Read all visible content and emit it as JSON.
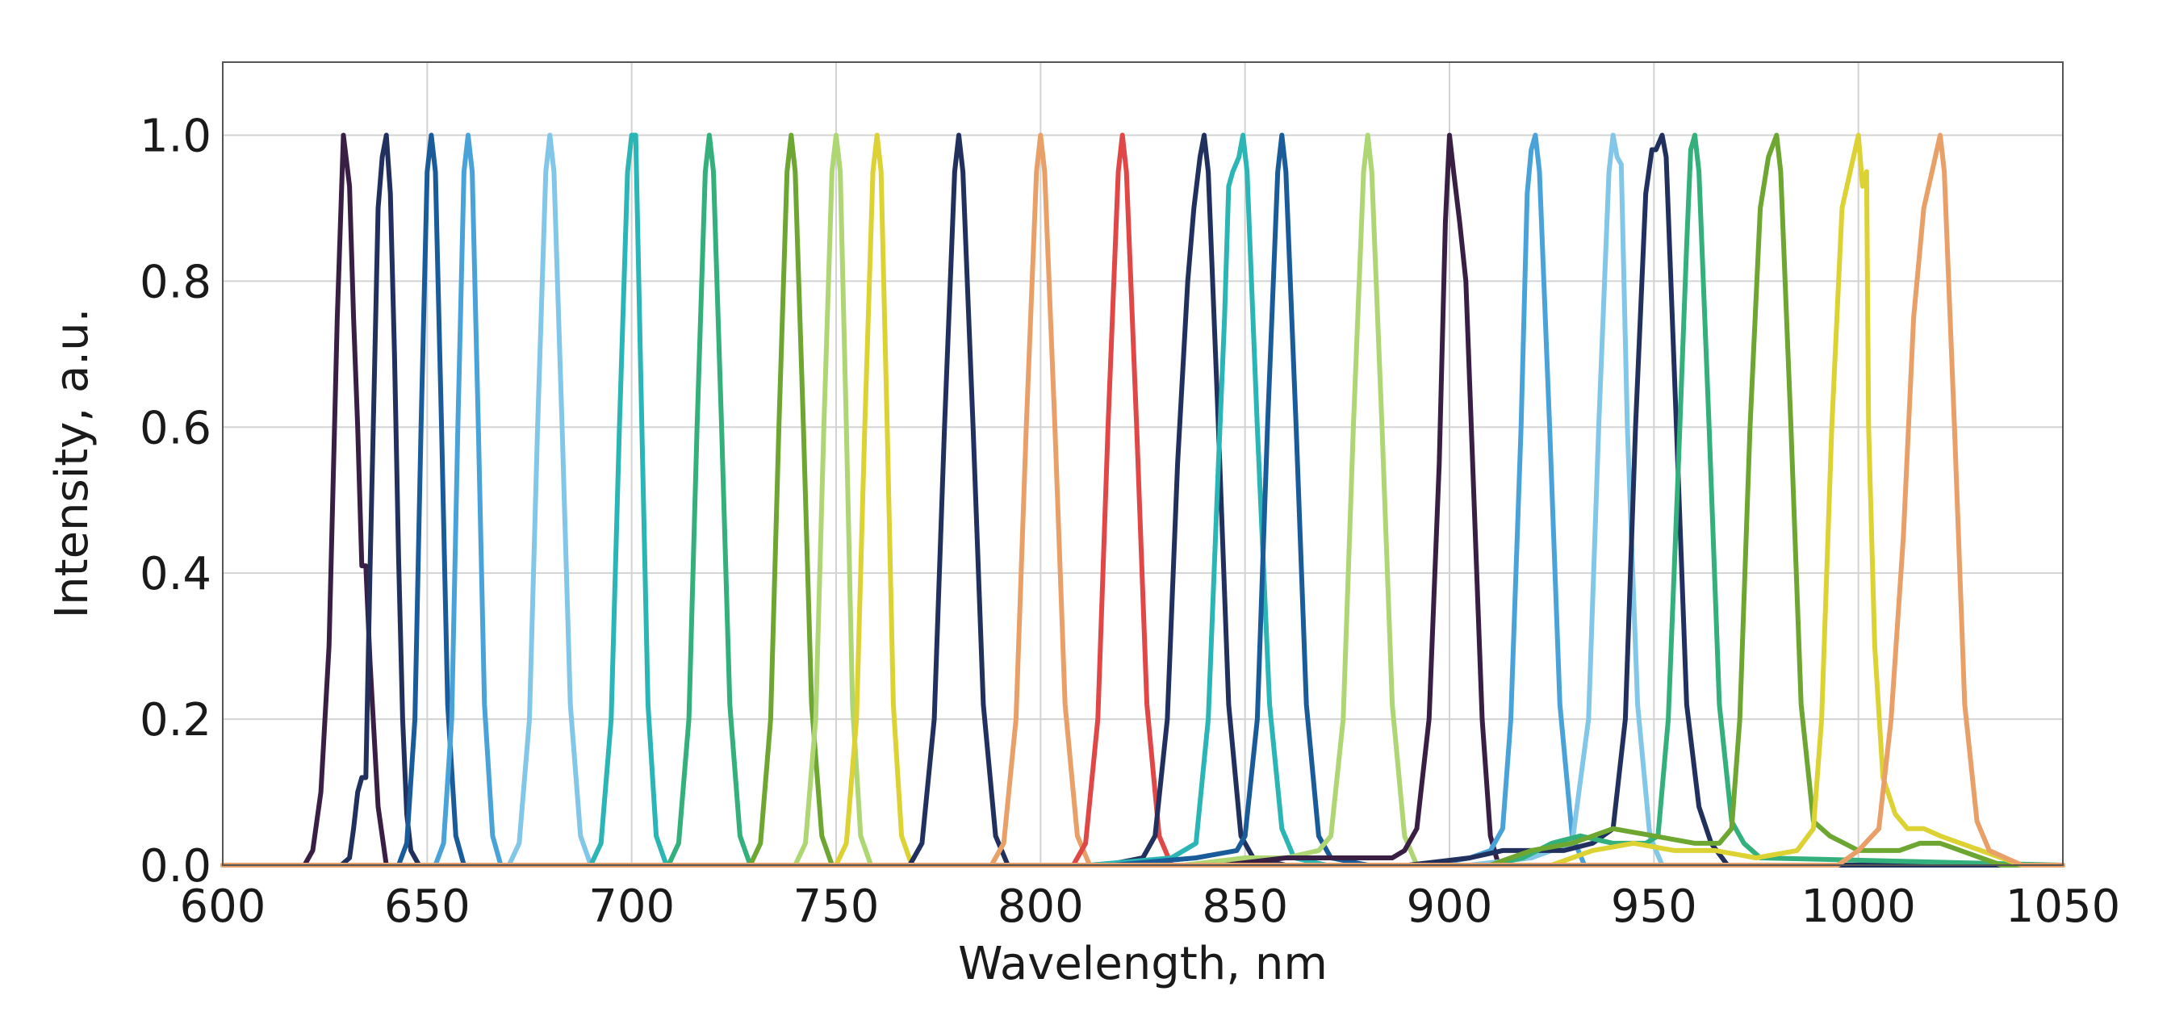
{
  "chart_data": {
    "type": "line",
    "title": "",
    "xlabel": "Wavelength, nm",
    "ylabel": "Intensity, a.u.",
    "xlim": [
      600,
      1050
    ],
    "ylim": [
      0,
      1.1
    ],
    "xticks": [
      600,
      650,
      700,
      750,
      800,
      850,
      900,
      950,
      1000,
      1050
    ],
    "xtick_labels": [
      "600",
      "650",
      "700",
      "750",
      "800",
      "850",
      "900",
      "950",
      "1000",
      "1050"
    ],
    "yticks": [
      0,
      0.2,
      0.4,
      0.6,
      0.8,
      1.0
    ],
    "ytick_labels": [
      "0.0",
      "0.2",
      "0.4",
      "0.6",
      "0.8",
      "1.0"
    ],
    "grid": true,
    "legend": "none",
    "series": [
      {
        "color": "#3a1f45",
        "x": [
          600,
          620,
          622,
          624,
          626,
          628,
          629.5,
          631,
          632,
          633,
          634,
          635,
          636,
          638,
          640,
          650,
          1050
        ],
        "y": [
          0,
          0,
          0.02,
          0.1,
          0.3,
          0.75,
          1.0,
          0.93,
          0.75,
          0.6,
          0.41,
          0.41,
          0.28,
          0.08,
          0,
          0,
          0
        ]
      },
      {
        "color": "#22305e",
        "x": [
          600,
          629,
          631,
          632,
          633,
          634,
          635,
          636,
          637,
          638,
          639,
          640,
          641,
          642,
          643,
          644,
          645,
          646,
          648,
          650,
          1050
        ],
        "y": [
          0,
          0,
          0.01,
          0.05,
          0.1,
          0.12,
          0.12,
          0.4,
          0.65,
          0.9,
          0.97,
          1.0,
          0.92,
          0.7,
          0.42,
          0.2,
          0.07,
          0.02,
          0,
          0,
          0
        ]
      },
      {
        "color": "#1a5c9a",
        "x": [
          600,
          643,
          645,
          647,
          648.5,
          650,
          651,
          652,
          653.5,
          655,
          657,
          659,
          1050
        ],
        "y": [
          0,
          0,
          0.03,
          0.2,
          0.6,
          0.95,
          1.0,
          0.95,
          0.6,
          0.22,
          0.04,
          0,
          0
        ]
      },
      {
        "color": "#4aa3d8",
        "x": [
          600,
          652,
          654,
          656,
          657.5,
          659,
          660,
          661,
          662.5,
          664,
          666,
          668,
          1050
        ],
        "y": [
          0,
          0,
          0.03,
          0.2,
          0.6,
          0.95,
          1.0,
          0.95,
          0.6,
          0.22,
          0.04,
          0,
          0
        ]
      },
      {
        "color": "#82c6e8",
        "x": [
          600,
          670,
          672.5,
          675,
          677,
          679,
          680,
          681,
          683,
          685,
          687.5,
          690,
          1050
        ],
        "y": [
          0,
          0,
          0.03,
          0.2,
          0.6,
          0.95,
          1.0,
          0.95,
          0.6,
          0.22,
          0.04,
          0,
          0
        ]
      },
      {
        "color": "#2bb5b5",
        "x": [
          600,
          690,
          692.5,
          695,
          697,
          699,
          700,
          701,
          702.5,
          704,
          706,
          708.5,
          1050
        ],
        "y": [
          0,
          0,
          0.03,
          0.2,
          0.6,
          0.95,
          1.0,
          1.0,
          0.6,
          0.22,
          0.04,
          0,
          0
        ]
      },
      {
        "color": "#33b07c",
        "x": [
          600,
          709,
          711.5,
          714,
          716,
          718,
          719,
          720,
          722,
          724,
          726.5,
          729,
          1050
        ],
        "y": [
          0,
          0,
          0.03,
          0.2,
          0.6,
          0.95,
          1.0,
          0.95,
          0.6,
          0.22,
          0.04,
          0,
          0
        ]
      },
      {
        "color": "#6ea632",
        "x": [
          600,
          729,
          731.5,
          734,
          736,
          738,
          739,
          740,
          742,
          744,
          746.5,
          749,
          1050
        ],
        "y": [
          0,
          0,
          0.03,
          0.2,
          0.6,
          0.95,
          1.0,
          0.95,
          0.6,
          0.22,
          0.04,
          0,
          0
        ]
      },
      {
        "color": "#aed673",
        "x": [
          600,
          740,
          742.5,
          745,
          747,
          749,
          750,
          751,
          752.5,
          754,
          756,
          758.5,
          1050
        ],
        "y": [
          0,
          0,
          0.03,
          0.2,
          0.6,
          0.95,
          1.0,
          0.95,
          0.6,
          0.22,
          0.04,
          0,
          0
        ]
      },
      {
        "color": "#dcd233",
        "x": [
          600,
          750,
          752.5,
          755,
          757,
          759,
          760,
          761,
          762.5,
          764,
          766,
          768.5,
          1050
        ],
        "y": [
          0,
          0,
          0.03,
          0.2,
          0.6,
          0.95,
          1.0,
          0.95,
          0.6,
          0.22,
          0.04,
          0,
          0
        ]
      },
      {
        "color": "#22305e",
        "x": [
          600,
          768,
          771,
          774,
          776.5,
          779,
          780,
          781,
          783.5,
          786,
          789,
          792,
          1050
        ],
        "y": [
          0,
          0,
          0.03,
          0.2,
          0.6,
          0.95,
          1.0,
          0.95,
          0.6,
          0.22,
          0.04,
          0,
          0
        ]
      },
      {
        "color": "#e8a068",
        "x": [
          600,
          788,
          791,
          794,
          796.5,
          799,
          800,
          801,
          803.5,
          806,
          809,
          812,
          1050
        ],
        "y": [
          0,
          0,
          0.03,
          0.2,
          0.6,
          0.95,
          1.0,
          0.95,
          0.6,
          0.22,
          0.04,
          0,
          0
        ]
      },
      {
        "color": "#e04848",
        "x": [
          600,
          808,
          811,
          814,
          816.5,
          819,
          820,
          821,
          823.5,
          826,
          829,
          832,
          1050
        ],
        "y": [
          0,
          0,
          0.03,
          0.2,
          0.6,
          0.95,
          1.0,
          0.95,
          0.6,
          0.22,
          0.04,
          0,
          0
        ]
      },
      {
        "color": "#22305e",
        "x": [
          600,
          816,
          825,
          828,
          831,
          833.5,
          836,
          837.5,
          839,
          840,
          841,
          843.5,
          846,
          849,
          852,
          860,
          1050
        ],
        "y": [
          0,
          0,
          0.01,
          0.04,
          0.2,
          0.55,
          0.8,
          0.9,
          0.97,
          1.0,
          0.95,
          0.6,
          0.22,
          0.04,
          0.01,
          0,
          0
        ]
      },
      {
        "color": "#2bb5b5",
        "x": [
          600,
          812,
          832,
          838,
          841,
          843.5,
          845,
          846,
          847,
          848.5,
          849.5,
          850.5,
          853,
          856,
          859,
          862,
          870,
          1050
        ],
        "y": [
          0,
          0,
          0.01,
          0.03,
          0.2,
          0.55,
          0.75,
          0.93,
          0.95,
          0.97,
          1.0,
          0.95,
          0.6,
          0.22,
          0.05,
          0.01,
          0,
          0
        ]
      },
      {
        "color": "#1a5c9a",
        "x": [
          600,
          818,
          838,
          848,
          850,
          853,
          855.5,
          858,
          859,
          860,
          862.5,
          865,
          868,
          871,
          880,
          1050
        ],
        "y": [
          0,
          0,
          0.01,
          0.02,
          0.04,
          0.2,
          0.6,
          0.95,
          1.0,
          0.95,
          0.6,
          0.22,
          0.04,
          0.01,
          0,
          0
        ]
      },
      {
        "color": "#aed673",
        "x": [
          600,
          835,
          850,
          860,
          868,
          871,
          874,
          876.5,
          879,
          880,
          881,
          883.5,
          886,
          889,
          892,
          1050
        ],
        "y": [
          0,
          0,
          0.01,
          0.01,
          0.02,
          0.04,
          0.2,
          0.6,
          0.95,
          1.0,
          0.95,
          0.6,
          0.22,
          0.04,
          0,
          0
        ]
      },
      {
        "color": "#3a1f45",
        "x": [
          600,
          845,
          860,
          880,
          886,
          889,
          892,
          895,
          897.5,
          899,
          900,
          901,
          902.5,
          904,
          906,
          908,
          910,
          912,
          1050
        ],
        "y": [
          0,
          0,
          0.01,
          0.01,
          0.01,
          0.02,
          0.05,
          0.2,
          0.55,
          0.88,
          1.0,
          0.95,
          0.88,
          0.8,
          0.5,
          0.2,
          0.04,
          0,
          0
        ]
      },
      {
        "color": "#4aa3d8",
        "x": [
          600,
          895,
          905,
          910,
          913,
          915,
          917.5,
          919,
          920,
          921,
          922,
          924.5,
          927,
          930,
          933,
          1050
        ],
        "y": [
          0,
          0,
          0.01,
          0.02,
          0.05,
          0.2,
          0.6,
          0.92,
          0.98,
          1.0,
          0.95,
          0.6,
          0.22,
          0.04,
          0,
          0
        ]
      },
      {
        "color": "#82c6e8",
        "x": [
          600,
          905,
          920,
          930,
          934,
          936.5,
          939,
          940,
          941,
          942,
          943.5,
          946,
          949,
          952,
          1050
        ],
        "y": [
          0,
          0,
          0.01,
          0.03,
          0.2,
          0.6,
          0.95,
          1.0,
          0.97,
          0.96,
          0.6,
          0.22,
          0.04,
          0,
          0
        ]
      },
      {
        "color": "#22305e",
        "x": [
          600,
          890,
          905,
          913,
          920,
          928,
          935,
          940,
          943,
          945.5,
          948,
          949.5,
          950.5,
          952,
          953,
          955.5,
          958,
          961,
          964,
          968,
          1050
        ],
        "y": [
          0,
          0,
          0.01,
          0.02,
          0.02,
          0.02,
          0.03,
          0.05,
          0.2,
          0.6,
          0.92,
          0.98,
          0.98,
          1.0,
          0.97,
          0.6,
          0.22,
          0.08,
          0.03,
          0,
          0
        ]
      },
      {
        "color": "#33b07c",
        "x": [
          600,
          910,
          918,
          925,
          932,
          940,
          944,
          948,
          951,
          953.5,
          956,
          958,
          959,
          960,
          961,
          963.5,
          966,
          969,
          972,
          976,
          1050
        ],
        "y": [
          0,
          0,
          0.01,
          0.03,
          0.04,
          0.03,
          0.03,
          0.03,
          0.04,
          0.2,
          0.55,
          0.85,
          0.98,
          1.0,
          0.95,
          0.6,
          0.22,
          0.06,
          0.03,
          0.01,
          0
        ]
      },
      {
        "color": "#6ea632",
        "x": [
          600,
          910,
          920,
          930,
          940,
          950,
          960,
          966,
          969,
          971,
          973.5,
          976,
          978,
          980,
          981,
          983.5,
          986,
          989,
          993,
          1000,
          1010,
          1015,
          1020,
          1025,
          1030,
          1035,
          1040,
          1050
        ],
        "y": [
          0,
          0,
          0.02,
          0.03,
          0.05,
          0.04,
          0.03,
          0.03,
          0.05,
          0.2,
          0.6,
          0.9,
          0.97,
          1.0,
          0.95,
          0.6,
          0.22,
          0.06,
          0.04,
          0.02,
          0.02,
          0.03,
          0.03,
          0.02,
          0.01,
          0,
          0,
          0
        ]
      },
      {
        "color": "#dcd233",
        "x": [
          600,
          925,
          935,
          945,
          955,
          965,
          975,
          985,
          989,
          991,
          993.5,
          996,
          998,
          1000,
          1001,
          1002,
          1002.5,
          1004,
          1006,
          1009,
          1012,
          1016,
          1020,
          1025,
          1030,
          1035,
          1040,
          1050
        ],
        "y": [
          0,
          0,
          0.02,
          0.03,
          0.02,
          0.02,
          0.01,
          0.02,
          0.05,
          0.2,
          0.6,
          0.9,
          0.95,
          1.0,
          0.93,
          0.95,
          0.6,
          0.3,
          0.12,
          0.07,
          0.05,
          0.05,
          0.04,
          0.03,
          0.02,
          0.01,
          0,
          0
        ]
      },
      {
        "color": "#e8a068",
        "x": [
          600,
          995,
          1000,
          1005,
          1008,
          1011,
          1013.5,
          1016,
          1018,
          1020,
          1021,
          1023.5,
          1026,
          1029,
          1032,
          1036,
          1040,
          1050
        ],
        "y": [
          0,
          0,
          0.02,
          0.05,
          0.2,
          0.45,
          0.75,
          0.9,
          0.95,
          1.0,
          0.95,
          0.6,
          0.22,
          0.06,
          0.02,
          0.01,
          0,
          0
        ]
      }
    ]
  }
}
